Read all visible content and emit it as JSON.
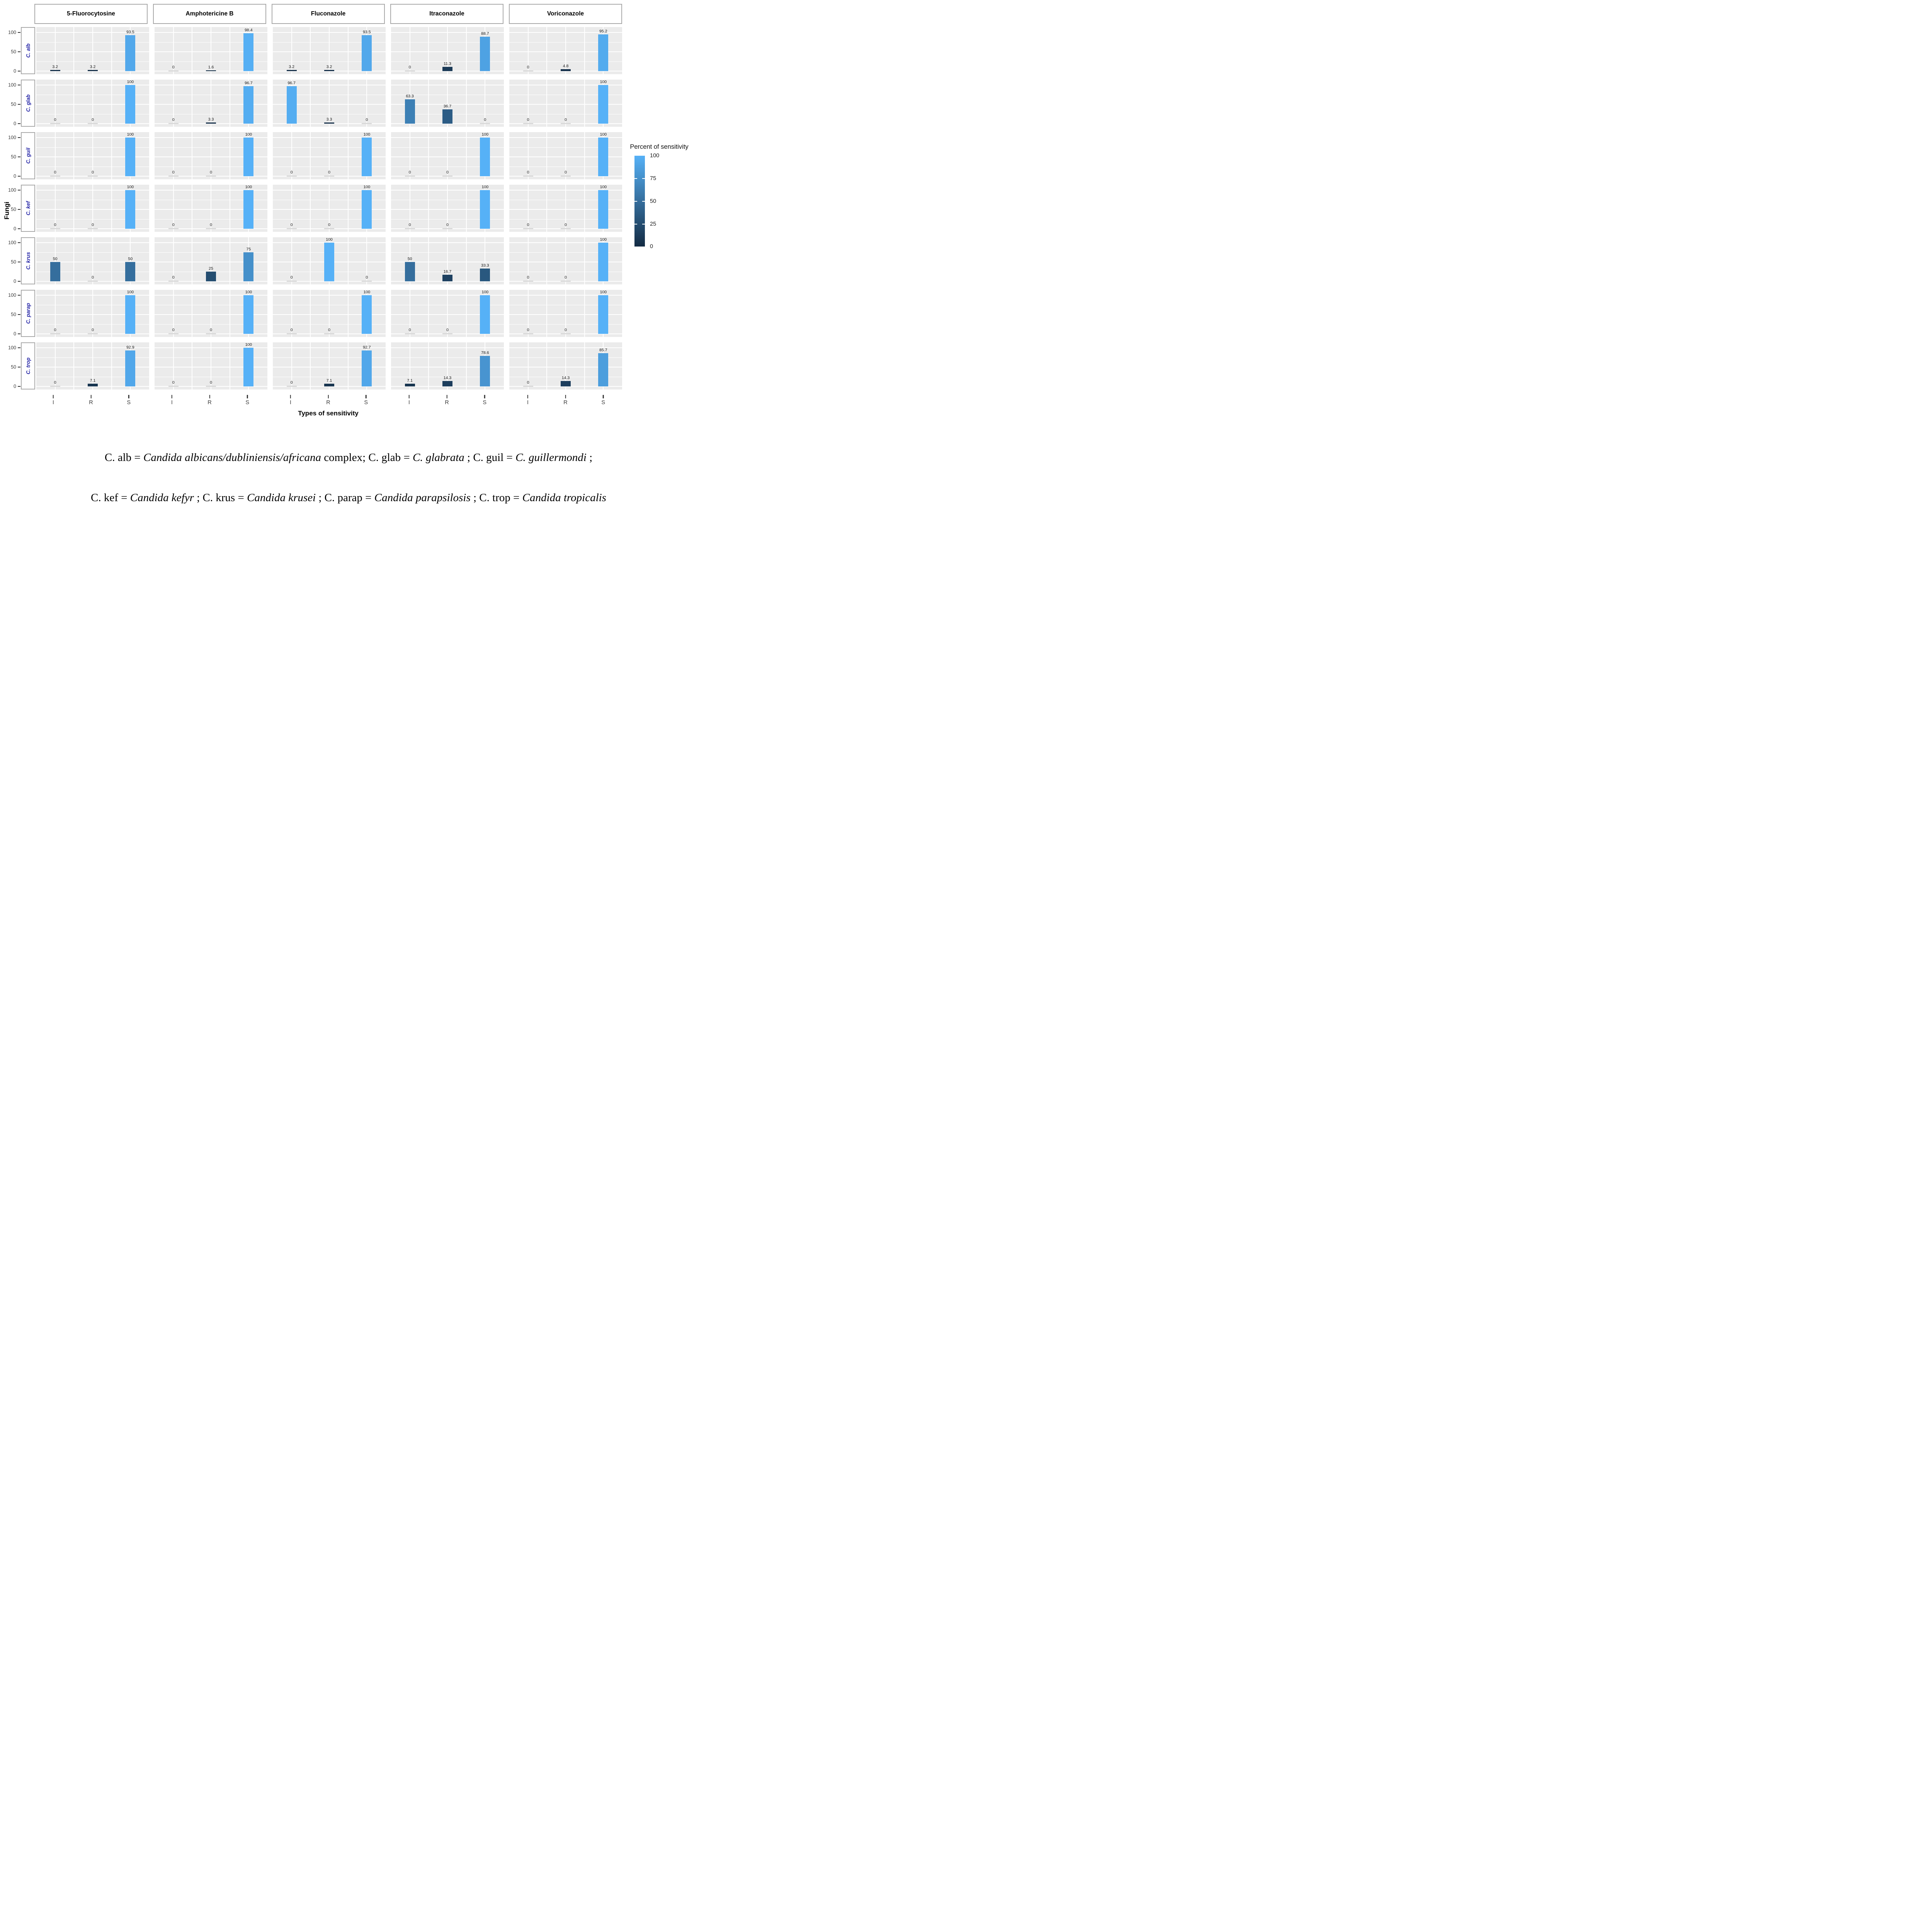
{
  "chart_data": {
    "type": "bar",
    "facet_rows": [
      "C. alb",
      "C. glab",
      "C. guil",
      "C. kef",
      "C. krus",
      "C. parap",
      "C. trop"
    ],
    "facet_cols": [
      "5-Fluorocytosine",
      "Amphotericine B",
      "Fluconazole",
      "Itraconazole",
      "Voriconazole"
    ],
    "categories": [
      "I",
      "R",
      "S"
    ],
    "values": {
      "C. alb": {
        "5-Fluorocytosine": [
          3.2,
          3.2,
          93.5
        ],
        "Amphotericine B": [
          0,
          1.6,
          98.4
        ],
        "Fluconazole": [
          3.2,
          3.2,
          93.5
        ],
        "Itraconazole": [
          0,
          11.3,
          88.7
        ],
        "Voriconazole": [
          0,
          4.8,
          95.2
        ]
      },
      "C. glab": {
        "5-Fluorocytosine": [
          0,
          0,
          100
        ],
        "Amphotericine B": [
          0,
          3.3,
          96.7
        ],
        "Fluconazole": [
          96.7,
          3.3,
          0
        ],
        "Itraconazole": [
          63.3,
          36.7,
          0
        ],
        "Voriconazole": [
          0,
          0,
          100
        ]
      },
      "C. guil": {
        "5-Fluorocytosine": [
          0,
          0,
          100
        ],
        "Amphotericine B": [
          0,
          0,
          100
        ],
        "Fluconazole": [
          0,
          0,
          100
        ],
        "Itraconazole": [
          0,
          0,
          100
        ],
        "Voriconazole": [
          0,
          0,
          100
        ]
      },
      "C. kef": {
        "5-Fluorocytosine": [
          0,
          0,
          100
        ],
        "Amphotericine B": [
          0,
          0,
          100
        ],
        "Fluconazole": [
          0,
          0,
          100
        ],
        "Itraconazole": [
          0,
          0,
          100
        ],
        "Voriconazole": [
          0,
          0,
          100
        ]
      },
      "C. krus": {
        "5-Fluorocytosine": [
          50,
          0,
          50
        ],
        "Amphotericine B": [
          0,
          25,
          75
        ],
        "Fluconazole": [
          0,
          100,
          0
        ],
        "Itraconazole": [
          50,
          16.7,
          33.3
        ],
        "Voriconazole": [
          0,
          0,
          100
        ]
      },
      "C. parap": {
        "5-Fluorocytosine": [
          0,
          0,
          100
        ],
        "Amphotericine B": [
          0,
          0,
          100
        ],
        "Fluconazole": [
          0,
          0,
          100
        ],
        "Itraconazole": [
          0,
          0,
          100
        ],
        "Voriconazole": [
          0,
          0,
          100
        ]
      },
      "C. trop": {
        "5-Fluorocytosine": [
          0,
          7.1,
          92.9
        ],
        "Amphotericine B": [
          0,
          0,
          100
        ],
        "Fluconazole": [
          0,
          7.1,
          92.7
        ],
        "Itraconazole": [
          7.1,
          14.3,
          78.6
        ],
        "Voriconazole": [
          0,
          14.3,
          85.7
        ]
      }
    },
    "xlabel": "Types of sensitivity",
    "ylabel": "Fungi",
    "ylim": [
      0,
      100
    ],
    "y_ticks": [
      100,
      50,
      0
    ],
    "grid": "on",
    "panel_background": "#EBEBEB",
    "legend": {
      "title": "Percent of sensitivity",
      "position": "right",
      "ticks": [
        100,
        75,
        50,
        25,
        0
      ],
      "color_high": "#56B1F7",
      "color_low": "#132B43"
    }
  },
  "captions": {
    "lines": [
      {
        "segments": [
          {
            "t": "C. alb = ",
            "i": false
          },
          {
            "t": "Candida albicans/dubliniensis/africana",
            "i": true
          },
          {
            "t": " complex; C. glab = ",
            "i": false
          },
          {
            "t": "C. glabrata",
            "i": true
          },
          {
            "t": " ; C. guil = ",
            "i": false
          },
          {
            "t": "C. guillermondi",
            "i": true
          },
          {
            "t": " ;",
            "i": false
          }
        ]
      },
      {
        "segments": [
          {
            "t": "C. kef = ",
            "i": false
          },
          {
            "t": "Candida kefyr",
            "i": true
          },
          {
            "t": " ; C. krus = ",
            "i": false
          },
          {
            "t": "Candida krusei",
            "i": true
          },
          {
            "t": " ; C. parap = ",
            "i": false
          },
          {
            "t": "Candida parapsilosis",
            "i": true
          },
          {
            "t": " ; C. trop = ",
            "i": false
          },
          {
            "t": "Candida tropicalis",
            "i": true
          }
        ]
      }
    ]
  }
}
